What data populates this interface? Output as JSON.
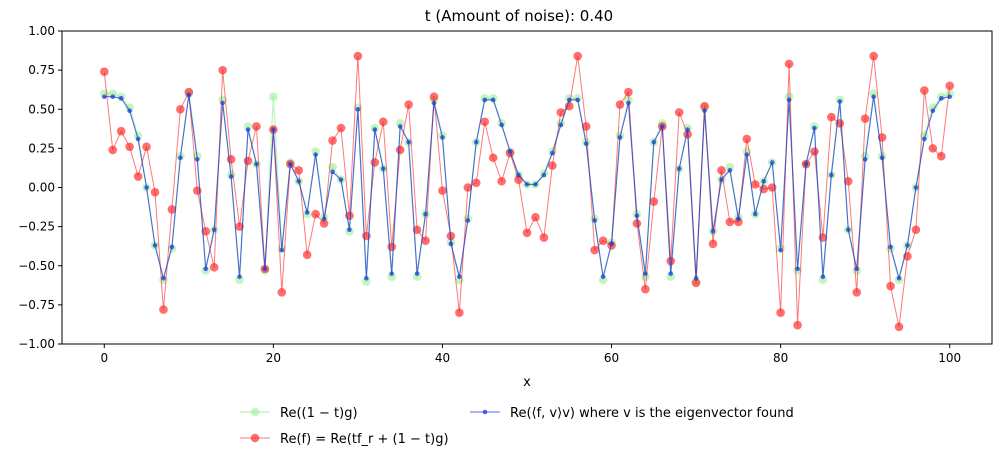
{
  "chart_data": {
    "type": "line",
    "title": "t (Amount of noise): 0.40",
    "xlabel": "x",
    "ylabel": "",
    "xlim": [
      -5,
      105
    ],
    "ylim": [
      -1.0,
      1.0
    ],
    "xticks": [
      0,
      20,
      40,
      60,
      80,
      100
    ],
    "yticks": [
      -1.0,
      -0.75,
      -0.5,
      -0.25,
      0.0,
      0.25,
      0.5,
      0.75,
      1.0
    ],
    "xtick_labels": [
      "0",
      "20",
      "40",
      "60",
      "80",
      "100"
    ],
    "ytick_labels": [
      "−1.00",
      "−0.75",
      "−0.50",
      "−0.25",
      "0.00",
      "0.25",
      "0.50",
      "0.75",
      "1.00"
    ],
    "grid": false,
    "legend_position": "bottom-center",
    "x": [
      0,
      1,
      2,
      3,
      4,
      5,
      6,
      7,
      8,
      9,
      10,
      11,
      12,
      13,
      14,
      15,
      16,
      17,
      18,
      19,
      20,
      21,
      22,
      23,
      24,
      25,
      26,
      27,
      28,
      29,
      30,
      31,
      32,
      33,
      34,
      35,
      36,
      37,
      38,
      39,
      40,
      41,
      42,
      43,
      44,
      45,
      46,
      47,
      48,
      49,
      50,
      51,
      52,
      53,
      54,
      55,
      56,
      57,
      58,
      59,
      60,
      61,
      62,
      63,
      64,
      65,
      66,
      67,
      68,
      69,
      70,
      71,
      72,
      73,
      74,
      75,
      76,
      77,
      78,
      79,
      80,
      81,
      82,
      83,
      84,
      85,
      86,
      87,
      88,
      89,
      90,
      91,
      92,
      93,
      94,
      95,
      96,
      97,
      98,
      99,
      100
    ],
    "series": [
      {
        "name": "Re((1 − t)g)",
        "color": "#90ee90",
        "values": [
          0.6,
          0.6,
          0.58,
          0.51,
          0.33,
          0.0,
          -0.37,
          -0.59,
          -0.39,
          0.2,
          0.6,
          0.2,
          -0.53,
          -0.27,
          0.56,
          0.08,
          -0.59,
          0.39,
          0.15,
          -0.53,
          0.58,
          -0.39,
          0.16,
          0.04,
          -0.17,
          0.23,
          -0.19,
          0.13,
          0.05,
          -0.28,
          0.51,
          -0.6,
          0.38,
          0.12,
          -0.57,
          0.41,
          0.29,
          -0.57,
          -0.17,
          0.56,
          0.33,
          -0.35,
          -0.59,
          -0.2,
          0.29,
          0.57,
          0.57,
          0.41,
          0.23,
          0.08,
          0.02,
          0.02,
          0.09,
          0.23,
          0.41,
          0.57,
          0.57,
          0.29,
          -0.2,
          -0.59,
          -0.35,
          0.33,
          0.56,
          -0.17,
          -0.57,
          0.29,
          0.41,
          -0.57,
          0.12,
          0.38,
          -0.6,
          0.51,
          -0.28,
          0.05,
          0.13,
          -0.19,
          0.23,
          -0.17,
          0.04,
          0.16,
          -0.39,
          0.58,
          -0.53,
          0.15,
          0.39,
          -0.59,
          0.08,
          0.56,
          -0.27,
          -0.53,
          0.2,
          0.6,
          0.2,
          -0.39,
          -0.59,
          -0.37,
          0.0,
          0.33,
          0.51,
          0.58,
          0.6
        ]
      },
      {
        "name": "Re(f) = Re(tf_r + (1 − t)g)",
        "color": "#ff2020",
        "values": [
          0.74,
          0.24,
          0.36,
          0.26,
          0.07,
          0.26,
          -0.03,
          -0.78,
          -0.14,
          0.5,
          0.61,
          -0.02,
          -0.28,
          -0.51,
          0.75,
          0.18,
          -0.25,
          0.17,
          0.39,
          -0.52,
          0.37,
          -0.67,
          0.15,
          0.11,
          -0.43,
          -0.17,
          -0.23,
          0.3,
          0.38,
          -0.18,
          0.84,
          -0.31,
          0.16,
          0.42,
          -0.38,
          0.24,
          0.53,
          -0.27,
          -0.34,
          0.58,
          -0.02,
          -0.31,
          -0.8,
          0.0,
          0.03,
          0.42,
          0.19,
          0.04,
          0.22,
          0.05,
          -0.29,
          -0.19,
          -0.32,
          0.14,
          0.48,
          0.52,
          0.84,
          0.39,
          -0.4,
          -0.34,
          -0.37,
          0.53,
          0.61,
          -0.23,
          -0.65,
          -0.09,
          0.39,
          -0.47,
          0.48,
          0.34,
          -0.61,
          0.52,
          -0.36,
          0.11,
          -0.22,
          -0.22,
          0.31,
          0.02,
          -0.01,
          0.0,
          -0.8,
          0.79,
          -0.88,
          0.15,
          0.23,
          -0.32,
          0.45,
          0.41,
          0.04,
          -0.67,
          0.44,
          0.84,
          0.32,
          -0.63,
          -0.89,
          -0.44,
          -0.27,
          0.62,
          0.25,
          0.2,
          0.65
        ]
      },
      {
        "name": "Re(⟨f, v⟩v) where v is the eigenvector found",
        "color": "#1e3cdc",
        "values": [
          0.58,
          0.58,
          0.57,
          0.49,
          0.31,
          0.0,
          -0.37,
          -0.58,
          -0.38,
          0.19,
          0.59,
          0.18,
          -0.52,
          -0.27,
          0.54,
          0.07,
          -0.57,
          0.37,
          0.15,
          -0.52,
          0.37,
          -0.4,
          0.15,
          0.04,
          -0.16,
          0.21,
          -0.2,
          0.1,
          0.05,
          -0.27,
          0.5,
          -0.58,
          0.37,
          0.12,
          -0.55,
          0.39,
          0.29,
          -0.55,
          -0.17,
          0.54,
          0.32,
          -0.36,
          -0.57,
          -0.21,
          0.29,
          0.56,
          0.56,
          0.4,
          0.23,
          0.08,
          0.02,
          0.02,
          0.08,
          0.22,
          0.4,
          0.56,
          0.56,
          0.28,
          -0.21,
          -0.57,
          -0.36,
          0.32,
          0.54,
          -0.18,
          -0.55,
          0.29,
          0.39,
          -0.55,
          0.12,
          0.37,
          -0.58,
          0.49,
          -0.28,
          0.05,
          0.11,
          -0.2,
          0.21,
          -0.17,
          0.04,
          0.16,
          -0.4,
          0.56,
          -0.52,
          0.15,
          0.38,
          -0.57,
          0.08,
          0.55,
          -0.27,
          -0.52,
          0.18,
          0.58,
          0.19,
          -0.38,
          -0.58,
          -0.37,
          0.0,
          0.31,
          0.49,
          0.57,
          0.58
        ]
      }
    ]
  }
}
